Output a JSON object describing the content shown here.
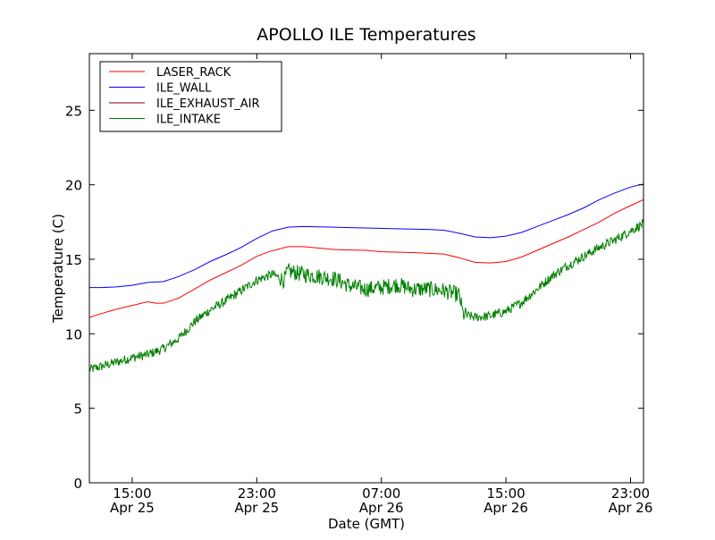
{
  "chart_data": {
    "type": "line",
    "title": "APOLLO ILE Temperatures",
    "xlabel": "Date (GMT)",
    "ylabel": "Temperature (C)",
    "xlim": [
      "2010-04-25 12:15",
      "2010-04-26 23:50"
    ],
    "ylim": [
      0,
      28.8
    ],
    "yticks": [
      0,
      5,
      10,
      15,
      20,
      25
    ],
    "xticks": [
      {
        "at": "2010-04-25 15:00",
        "time": "15:00",
        "date": "Apr 25"
      },
      {
        "at": "2010-04-25 23:00",
        "time": "23:00",
        "date": "Apr 25"
      },
      {
        "at": "2010-04-26 07:00",
        "time": "07:00",
        "date": "Apr 26"
      },
      {
        "at": "2010-04-26 15:00",
        "time": "15:00",
        "date": "Apr 26"
      },
      {
        "at": "2010-04-26 23:00",
        "time": "23:00",
        "date": "Apr 26"
      }
    ],
    "grid": false,
    "legend": "top-left",
    "series": [
      {
        "name": "LASER_RACK",
        "color": "#ff0000",
        "points": [
          [
            "2010-04-25 12:15",
            11.1
          ],
          [
            "2010-04-25 13:00",
            11.35
          ],
          [
            "2010-04-25 14:00",
            11.65
          ],
          [
            "2010-04-25 15:00",
            11.9
          ],
          [
            "2010-04-25 16:00",
            12.15
          ],
          [
            "2010-04-25 16:30",
            12.05
          ],
          [
            "2010-04-25 17:00",
            12.05
          ],
          [
            "2010-04-25 18:00",
            12.4
          ],
          [
            "2010-04-25 19:00",
            13.0
          ],
          [
            "2010-04-25 20:00",
            13.6
          ],
          [
            "2010-04-25 21:00",
            14.1
          ],
          [
            "2010-04-25 22:00",
            14.6
          ],
          [
            "2010-04-25 23:00",
            15.2
          ],
          [
            "2010-04-25 23:45",
            15.5
          ],
          [
            "2010-04-26 01:00",
            15.85
          ],
          [
            "2010-04-26 02:00",
            15.85
          ],
          [
            "2010-04-26 04:00",
            15.65
          ],
          [
            "2010-04-26 06:00",
            15.6
          ],
          [
            "2010-04-26 07:00",
            15.5
          ],
          [
            "2010-04-26 09:00",
            15.45
          ],
          [
            "2010-04-26 11:00",
            15.35
          ],
          [
            "2010-04-26 12:00",
            15.1
          ],
          [
            "2010-04-26 13:00",
            14.8
          ],
          [
            "2010-04-26 14:00",
            14.75
          ],
          [
            "2010-04-26 15:00",
            14.85
          ],
          [
            "2010-04-26 16:00",
            15.15
          ],
          [
            "2010-04-26 17:00",
            15.6
          ],
          [
            "2010-04-26 18:00",
            16.05
          ],
          [
            "2010-04-26 19:00",
            16.5
          ],
          [
            "2010-04-26 20:00",
            17.0
          ],
          [
            "2010-04-26 21:00",
            17.5
          ],
          [
            "2010-04-26 22:00",
            18.1
          ],
          [
            "2010-04-26 23:00",
            18.6
          ],
          [
            "2010-04-26 23:50",
            19.0
          ]
        ]
      },
      {
        "name": "ILE_WALL",
        "color": "#0000ff",
        "points": [
          [
            "2010-04-25 12:15",
            13.1
          ],
          [
            "2010-04-25 13:00",
            13.1
          ],
          [
            "2010-04-25 14:00",
            13.15
          ],
          [
            "2010-04-25 15:00",
            13.25
          ],
          [
            "2010-04-25 16:00",
            13.45
          ],
          [
            "2010-04-25 17:00",
            13.5
          ],
          [
            "2010-04-25 18:00",
            13.85
          ],
          [
            "2010-04-25 19:00",
            14.3
          ],
          [
            "2010-04-25 20:00",
            14.85
          ],
          [
            "2010-04-25 21:00",
            15.3
          ],
          [
            "2010-04-25 22:00",
            15.8
          ],
          [
            "2010-04-25 23:00",
            16.4
          ],
          [
            "2010-04-26 00:00",
            16.9
          ],
          [
            "2010-04-26 01:00",
            17.15
          ],
          [
            "2010-04-26 02:00",
            17.2
          ],
          [
            "2010-04-26 04:00",
            17.15
          ],
          [
            "2010-04-26 06:00",
            17.1
          ],
          [
            "2010-04-26 08:00",
            17.05
          ],
          [
            "2010-04-26 10:00",
            17.0
          ],
          [
            "2010-04-26 11:00",
            16.95
          ],
          [
            "2010-04-26 12:00",
            16.75
          ],
          [
            "2010-04-26 13:00",
            16.5
          ],
          [
            "2010-04-26 14:00",
            16.45
          ],
          [
            "2010-04-26 15:00",
            16.55
          ],
          [
            "2010-04-26 16:00",
            16.8
          ],
          [
            "2010-04-26 17:00",
            17.2
          ],
          [
            "2010-04-26 18:00",
            17.6
          ],
          [
            "2010-04-26 19:00",
            18.0
          ],
          [
            "2010-04-26 20:00",
            18.45
          ],
          [
            "2010-04-26 21:00",
            19.0
          ],
          [
            "2010-04-26 22:00",
            19.45
          ],
          [
            "2010-04-26 23:00",
            19.85
          ],
          [
            "2010-04-26 23:50",
            20.05
          ]
        ]
      },
      {
        "name": "ILE_EXHAUST_AIR",
        "color": "#8b0000",
        "points": []
      },
      {
        "name": "ILE_INTAKE",
        "color": "#008000",
        "noise": true,
        "points": [
          [
            "2010-04-25 12:15",
            7.6
          ],
          [
            "2010-04-25 13:00",
            7.8
          ],
          [
            "2010-04-25 14:00",
            8.1
          ],
          [
            "2010-04-25 15:00",
            8.4
          ],
          [
            "2010-04-25 16:00",
            8.6
          ],
          [
            "2010-04-25 17:00",
            9.0
          ],
          [
            "2010-04-25 18:00",
            9.7
          ],
          [
            "2010-04-25 19:00",
            10.8
          ],
          [
            "2010-04-25 20:00",
            11.6
          ],
          [
            "2010-04-25 21:00",
            12.2
          ],
          [
            "2010-04-25 22:00",
            12.9
          ],
          [
            "2010-04-25 23:00",
            13.6
          ],
          [
            "2010-04-26 00:00",
            14.0
          ],
          [
            "2010-04-26 00:45",
            13.6
          ],
          [
            "2010-04-26 01:00",
            14.2
          ],
          [
            "2010-04-26 02:00",
            14.0
          ],
          [
            "2010-04-26 04:00",
            13.7
          ],
          [
            "2010-04-26 05:00",
            13.2
          ],
          [
            "2010-04-26 06:00",
            13.0
          ],
          [
            "2010-04-26 07:00",
            13.1
          ],
          [
            "2010-04-26 08:00",
            13.3
          ],
          [
            "2010-04-26 09:00",
            13.0
          ],
          [
            "2010-04-26 10:00",
            13.0
          ],
          [
            "2010-04-26 11:00",
            12.9
          ],
          [
            "2010-04-26 12:00",
            12.6
          ],
          [
            "2010-04-26 12:15",
            11.3
          ],
          [
            "2010-04-26 13:00",
            11.1
          ],
          [
            "2010-04-26 14:00",
            11.2
          ],
          [
            "2010-04-26 15:00",
            11.5
          ],
          [
            "2010-04-26 16:00",
            12.1
          ],
          [
            "2010-04-26 17:00",
            13.0
          ],
          [
            "2010-04-26 18:00",
            13.9
          ],
          [
            "2010-04-26 19:00",
            14.6
          ],
          [
            "2010-04-26 20:00",
            15.2
          ],
          [
            "2010-04-26 21:00",
            15.8
          ],
          [
            "2010-04-26 22:00",
            16.3
          ],
          [
            "2010-04-26 23:00",
            16.9
          ],
          [
            "2010-04-26 23:50",
            17.4
          ]
        ]
      }
    ]
  }
}
